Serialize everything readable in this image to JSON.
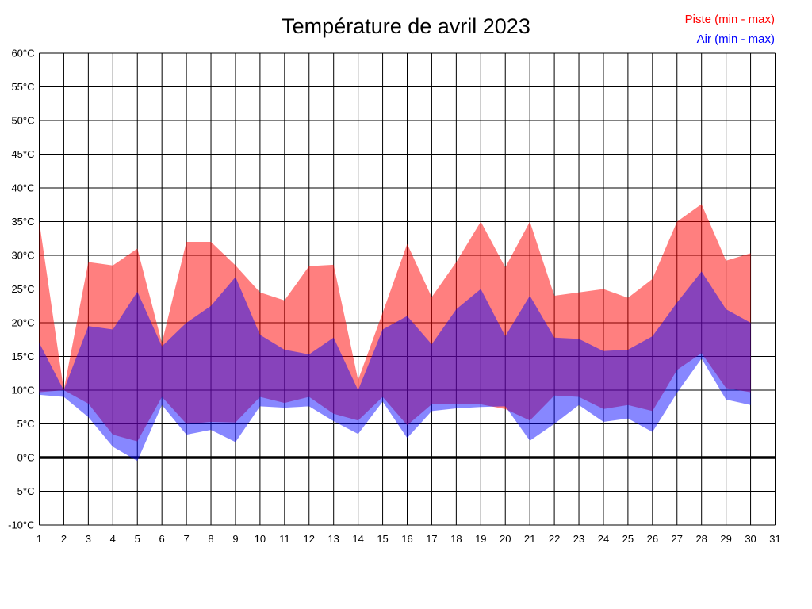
{
  "title": "Température de avril 2023",
  "legend": {
    "piste_label": "Piste (min - max)",
    "air_label": "Air (min - max)",
    "piste_color": "#ff0000",
    "air_color": "#0000ff"
  },
  "chart_data": {
    "type": "area",
    "title": "Température de avril 2023",
    "xlabel": "",
    "ylabel": "",
    "xlim": [
      1,
      31
    ],
    "ylim": [
      -10,
      60
    ],
    "grid": true,
    "zero_line_bold": true,
    "y_ticks": [
      60,
      55,
      50,
      45,
      40,
      35,
      30,
      25,
      20,
      15,
      10,
      5,
      0,
      -5,
      -10
    ],
    "y_tick_labels": [
      "60°C",
      "55°C",
      "50°C",
      "45°C",
      "40°C",
      "35°C",
      "30°C",
      "25°C",
      "20°C",
      "15°C",
      "10°C",
      "5°C",
      "0°C",
      "-5°C",
      "-10°C"
    ],
    "x_ticks": [
      1,
      2,
      3,
      4,
      5,
      6,
      7,
      8,
      9,
      10,
      11,
      12,
      13,
      14,
      15,
      16,
      17,
      18,
      19,
      20,
      21,
      22,
      23,
      24,
      25,
      26,
      27,
      28,
      29,
      30,
      31
    ],
    "days": [
      1,
      2,
      3,
      4,
      5,
      6,
      7,
      8,
      9,
      10,
      11,
      12,
      13,
      14,
      15,
      16,
      17,
      18,
      19,
      20,
      21,
      22,
      23,
      24,
      25,
      26,
      27,
      28,
      29,
      30
    ],
    "series": [
      {
        "name": "Piste max",
        "values": [
          35,
          10,
          29,
          28.5,
          31,
          17,
          32,
          32,
          28.5,
          24.5,
          23.3,
          28.4,
          28.6,
          11.5,
          21.5,
          31.7,
          23.8,
          29,
          35,
          28.2,
          35,
          24,
          24.5,
          25,
          23.7,
          26.5,
          35,
          37.6,
          29.2,
          30.3
        ]
      },
      {
        "name": "Piste min",
        "values": [
          9.7,
          10,
          8,
          3.4,
          2.4,
          9,
          5,
          5.3,
          5.2,
          9,
          8.1,
          9,
          6.5,
          5.5,
          9,
          4.8,
          7.9,
          8,
          7.9,
          7.2,
          5.5,
          9.2,
          9,
          7.2,
          7.8,
          6.9,
          13,
          15.5,
          10.3,
          9.7
        ]
      },
      {
        "name": "Air max",
        "values": [
          17,
          10,
          19.5,
          19,
          24.6,
          16.5,
          20,
          22.5,
          26.8,
          18.2,
          16,
          15.3,
          17.8,
          10,
          19,
          21,
          16.8,
          22,
          25,
          18,
          24,
          17.8,
          17.6,
          15.8,
          16,
          18,
          23,
          27.6,
          22,
          20
        ]
      },
      {
        "name": "Air min",
        "values": [
          9.3,
          9,
          6,
          1.6,
          -0.5,
          7.8,
          3.4,
          4.1,
          2.3,
          7.6,
          7.4,
          7.6,
          5.4,
          3.5,
          8.3,
          2.9,
          6.9,
          7.3,
          7.5,
          7.6,
          2.5,
          5,
          7.8,
          5.3,
          5.8,
          3.8,
          9.6,
          14.7,
          8.6,
          7.8
        ]
      }
    ],
    "band_fill_piste": "rgba(255,0,0,0.5)",
    "band_fill_air": "rgba(0,0,255,0.47)",
    "legend_position": "top-right"
  }
}
